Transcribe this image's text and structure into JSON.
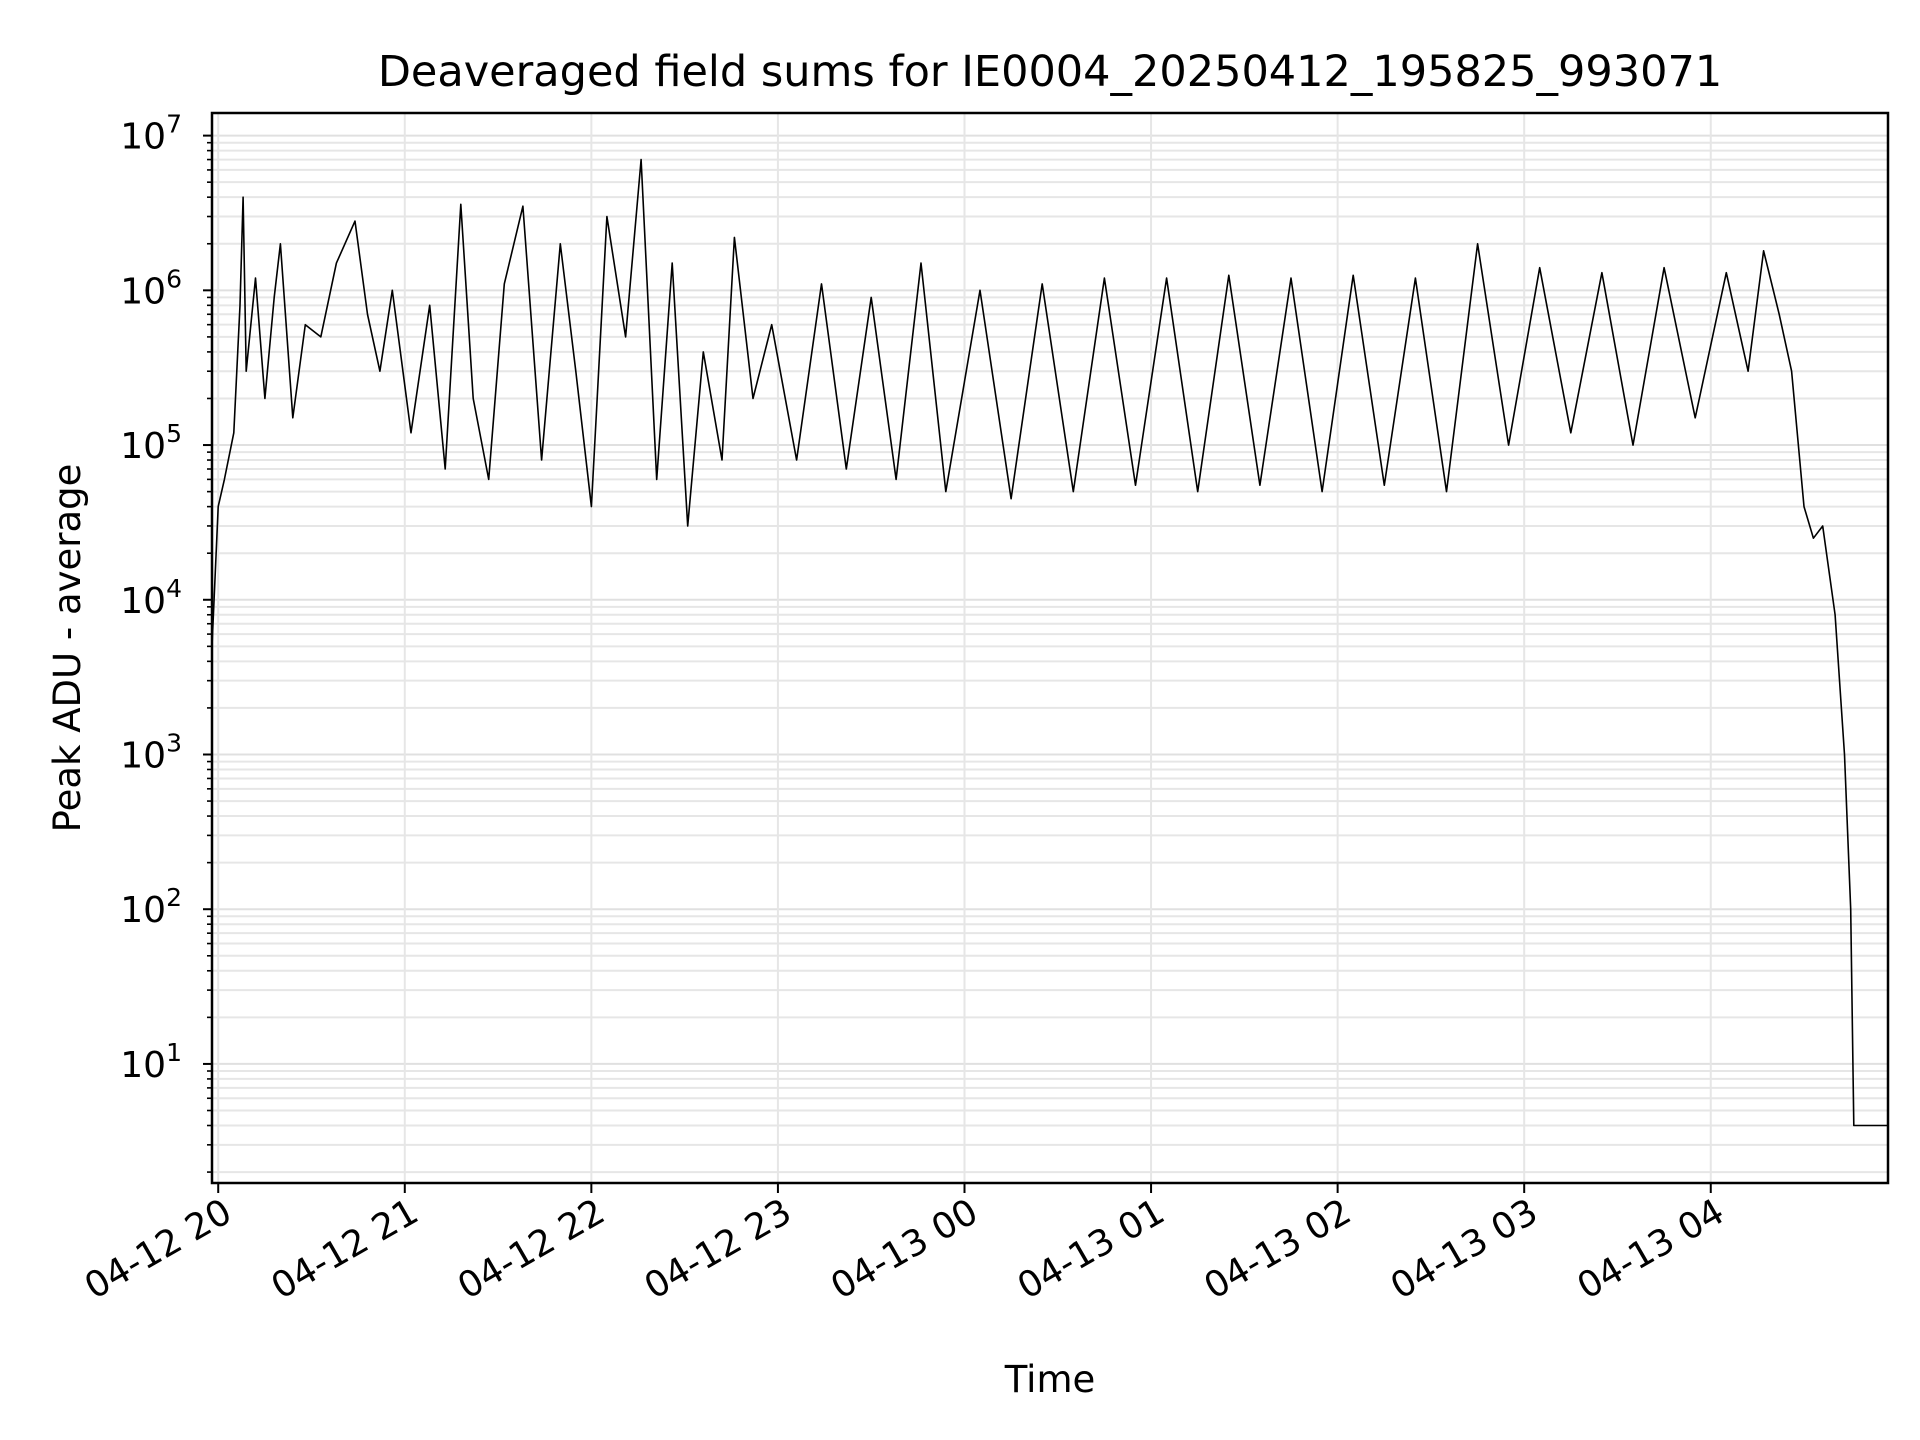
{
  "chart_data": {
    "type": "line",
    "title": "Deaveraged field sums for IE0004_20250412_195825_993071",
    "xlabel": "Time",
    "ylabel": "Peak ADU - average",
    "y_scale": "log",
    "grid": true,
    "legend": "none",
    "line_color": "#000000",
    "x_range": [
      "2025-04-12 19:58",
      "2025-04-13 04:57"
    ],
    "y_range": [
      1.7,
      14000000
    ],
    "x_ticks": [
      {
        "time": "2025-04-12 20:00",
        "label": "04-12 20"
      },
      {
        "time": "2025-04-12 21:00",
        "label": "04-12 21"
      },
      {
        "time": "2025-04-12 22:00",
        "label": "04-12 22"
      },
      {
        "time": "2025-04-12 23:00",
        "label": "04-12 23"
      },
      {
        "time": "2025-04-13 00:00",
        "label": "04-13 00"
      },
      {
        "time": "2025-04-13 01:00",
        "label": "04-13 01"
      },
      {
        "time": "2025-04-13 02:00",
        "label": "04-13 02"
      },
      {
        "time": "2025-04-13 03:00",
        "label": "04-13 03"
      },
      {
        "time": "2025-04-13 04:00",
        "label": "04-13 04"
      }
    ],
    "y_ticks": [
      {
        "value": 10,
        "base": "10",
        "exp": "1"
      },
      {
        "value": 100,
        "base": "10",
        "exp": "2"
      },
      {
        "value": 1000,
        "base": "10",
        "exp": "3"
      },
      {
        "value": 10000,
        "base": "10",
        "exp": "4"
      },
      {
        "value": 100000,
        "base": "10",
        "exp": "5"
      },
      {
        "value": 1000000,
        "base": "10",
        "exp": "6"
      },
      {
        "value": 10000000,
        "base": "10",
        "exp": "7"
      }
    ],
    "series": [
      {
        "points": [
          [
            "2025-04-12 19:58",
            5000
          ],
          [
            "2025-04-12 20:00",
            40000
          ],
          [
            "2025-04-12 20:02",
            60000
          ],
          [
            "2025-04-12 20:05",
            120000
          ],
          [
            "2025-04-12 20:07",
            800000
          ],
          [
            "2025-04-12 20:08",
            4000000
          ],
          [
            "2025-04-12 20:09",
            300000
          ],
          [
            "2025-04-12 20:12",
            1200000
          ],
          [
            "2025-04-12 20:15",
            200000
          ],
          [
            "2025-04-12 20:18",
            900000
          ],
          [
            "2025-04-12 20:20",
            2000000
          ],
          [
            "2025-04-12 20:24",
            150000
          ],
          [
            "2025-04-12 20:28",
            600000
          ],
          [
            "2025-04-12 20:33",
            500000
          ],
          [
            "2025-04-12 20:38",
            1500000
          ],
          [
            "2025-04-12 20:44",
            2800000
          ],
          [
            "2025-04-12 20:48",
            700000
          ],
          [
            "2025-04-12 20:52",
            300000
          ],
          [
            "2025-04-12 20:56",
            1000000
          ],
          [
            "2025-04-12 21:02",
            120000
          ],
          [
            "2025-04-12 21:08",
            800000
          ],
          [
            "2025-04-12 21:13",
            70000
          ],
          [
            "2025-04-12 21:18",
            3600000
          ],
          [
            "2025-04-12 21:22",
            200000
          ],
          [
            "2025-04-12 21:27",
            60000
          ],
          [
            "2025-04-12 21:32",
            1100000
          ],
          [
            "2025-04-12 21:38",
            3500000
          ],
          [
            "2025-04-12 21:44",
            80000
          ],
          [
            "2025-04-12 21:50",
            2000000
          ],
          [
            "2025-04-12 21:55",
            300000
          ],
          [
            "2025-04-12 22:00",
            40000
          ],
          [
            "2025-04-12 22:05",
            3000000
          ],
          [
            "2025-04-12 22:11",
            500000
          ],
          [
            "2025-04-12 22:16",
            7000000
          ],
          [
            "2025-04-12 22:21",
            60000
          ],
          [
            "2025-04-12 22:26",
            1500000
          ],
          [
            "2025-04-12 22:31",
            30000
          ],
          [
            "2025-04-12 22:36",
            400000
          ],
          [
            "2025-04-12 22:42",
            80000
          ],
          [
            "2025-04-12 22:46",
            2200000
          ],
          [
            "2025-04-12 22:52",
            200000
          ],
          [
            "2025-04-12 22:58",
            600000
          ],
          [
            "2025-04-12 23:06",
            80000
          ],
          [
            "2025-04-12 23:14",
            1100000
          ],
          [
            "2025-04-12 23:22",
            70000
          ],
          [
            "2025-04-12 23:30",
            900000
          ],
          [
            "2025-04-12 23:38",
            60000
          ],
          [
            "2025-04-12 23:46",
            1500000
          ],
          [
            "2025-04-12 23:54",
            50000
          ],
          [
            "2025-04-13 00:05",
            1000000
          ],
          [
            "2025-04-13 00:15",
            45000
          ],
          [
            "2025-04-13 00:25",
            1100000
          ],
          [
            "2025-04-13 00:35",
            50000
          ],
          [
            "2025-04-13 00:45",
            1200000
          ],
          [
            "2025-04-13 00:55",
            55000
          ],
          [
            "2025-04-13 01:05",
            1200000
          ],
          [
            "2025-04-13 01:15",
            50000
          ],
          [
            "2025-04-13 01:25",
            1250000
          ],
          [
            "2025-04-13 01:35",
            55000
          ],
          [
            "2025-04-13 01:45",
            1200000
          ],
          [
            "2025-04-13 01:55",
            50000
          ],
          [
            "2025-04-13 02:05",
            1250000
          ],
          [
            "2025-04-13 02:15",
            55000
          ],
          [
            "2025-04-13 02:25",
            1200000
          ],
          [
            "2025-04-13 02:35",
            50000
          ],
          [
            "2025-04-13 02:45",
            2000000
          ],
          [
            "2025-04-13 02:55",
            100000
          ],
          [
            "2025-04-13 03:05",
            1400000
          ],
          [
            "2025-04-13 03:15",
            120000
          ],
          [
            "2025-04-13 03:25",
            1300000
          ],
          [
            "2025-04-13 03:35",
            100000
          ],
          [
            "2025-04-13 03:45",
            1400000
          ],
          [
            "2025-04-13 03:55",
            150000
          ],
          [
            "2025-04-13 04:05",
            1300000
          ],
          [
            "2025-04-13 04:12",
            300000
          ],
          [
            "2025-04-13 04:17",
            1800000
          ],
          [
            "2025-04-13 04:22",
            700000
          ],
          [
            "2025-04-13 04:26",
            300000
          ],
          [
            "2025-04-13 04:30",
            40000
          ],
          [
            "2025-04-13 04:33",
            25000
          ],
          [
            "2025-04-13 04:36",
            30000
          ],
          [
            "2025-04-13 04:40",
            8000
          ],
          [
            "2025-04-13 04:43",
            1000
          ],
          [
            "2025-04-13 04:45",
            100
          ],
          [
            "2025-04-13 04:46",
            4
          ],
          [
            "2025-04-13 04:57",
            4
          ]
        ]
      }
    ]
  }
}
